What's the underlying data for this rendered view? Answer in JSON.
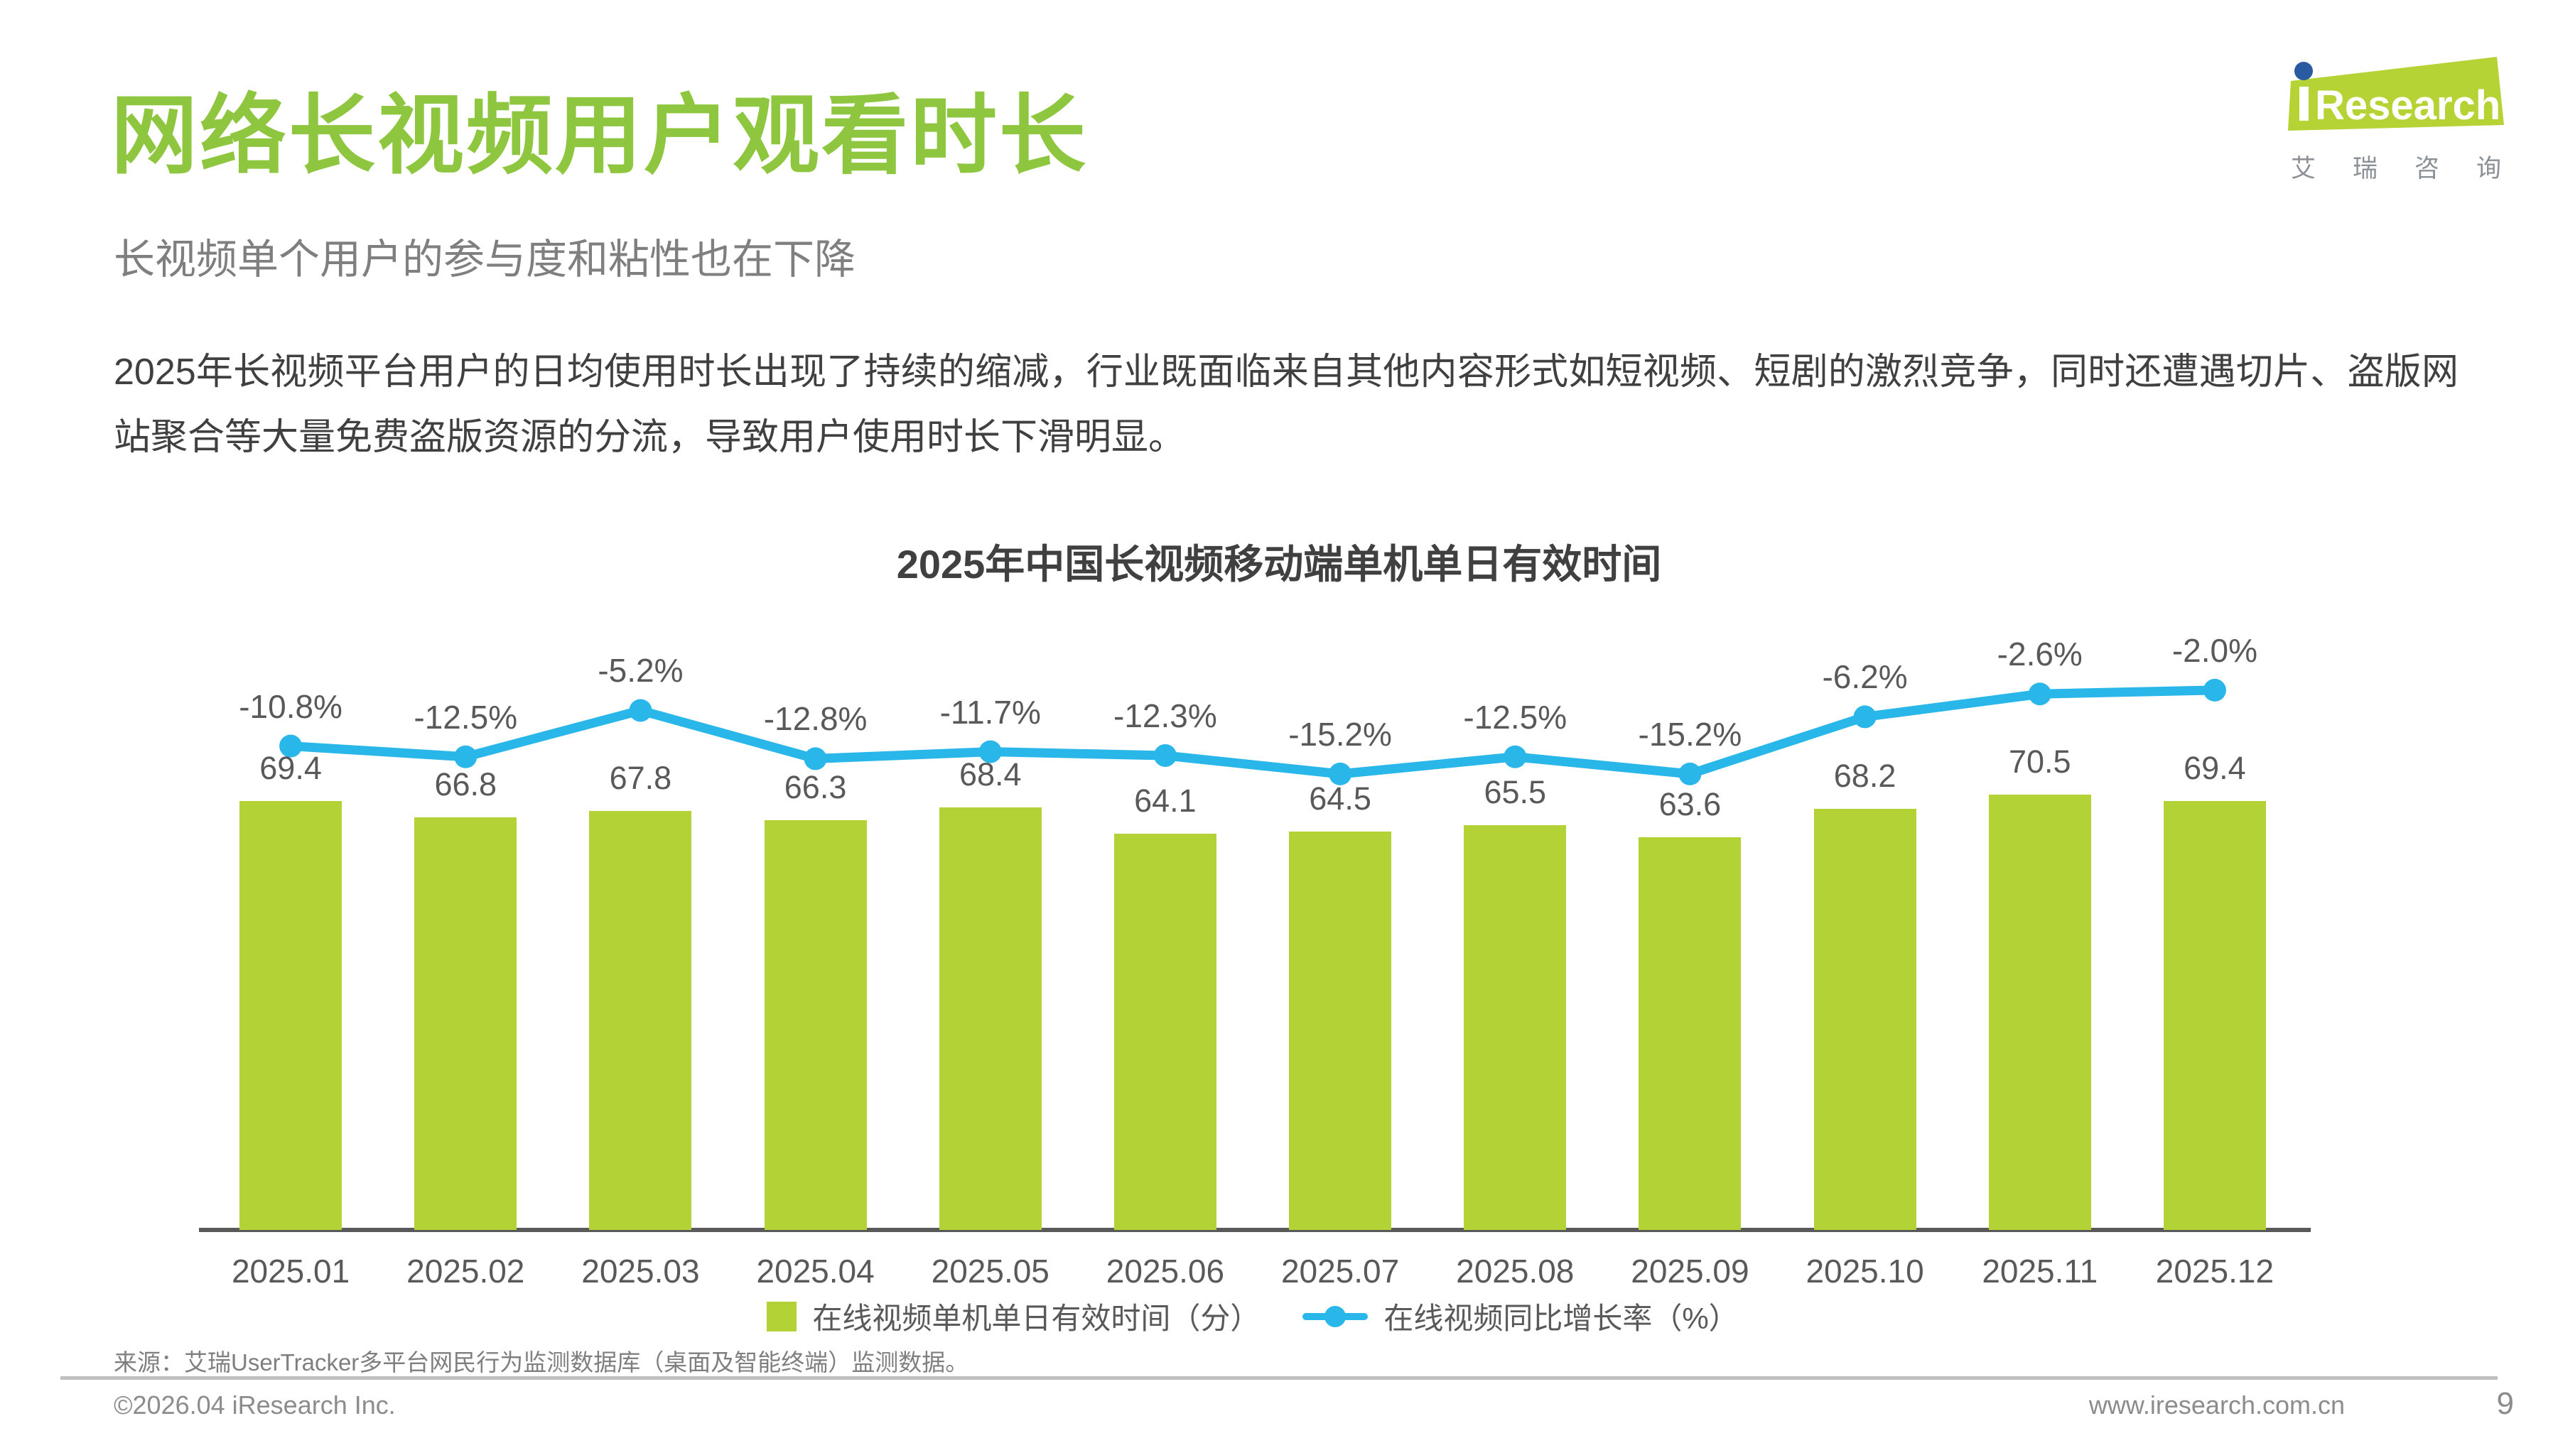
{
  "page": {
    "title": "网络长视频用户观看时长",
    "subtitle": "长视频单个用户的参与度和粘性也在下降",
    "paragraph": "2025年长视频平台用户的日均使用时长出现了持续的缩减，行业既面临来自其他内容形式如短视频、短剧的激烈竞争，同时还遭遇切片、盗版网站聚合等大量免费盗版资源的分流，导致用户使用时长下滑明显。",
    "page_number": "9"
  },
  "logo": {
    "brand": "Research",
    "brand_cn_chars": [
      "艾",
      "瑞",
      "咨",
      "询"
    ]
  },
  "footer": {
    "source": "来源：艾瑞UserTracker多平台网民行为监测数据库（桌面及智能终端）监测数据。",
    "copyright": "©2026.04 iResearch Inc.",
    "website": "www.iresearch.com.cn"
  },
  "chart_data": {
    "type": "bar",
    "title": "2025年中国长视频移动端单机单日有效时间",
    "categories": [
      "2025.01",
      "2025.02",
      "2025.03",
      "2025.04",
      "2025.05",
      "2025.06",
      "2025.07",
      "2025.08",
      "2025.09",
      "2025.10",
      "2025.11",
      "2025.12"
    ],
    "series": [
      {
        "name": "在线视频单机单日有效时间（分）",
        "type": "bar",
        "values": [
          69.4,
          66.8,
          67.8,
          66.3,
          68.4,
          64.1,
          64.5,
          65.5,
          63.6,
          68.2,
          70.5,
          69.4
        ]
      },
      {
        "name": "在线视频同比增长率（%）",
        "type": "line",
        "values": [
          -10.8,
          -12.5,
          -5.2,
          -12.8,
          -11.7,
          -12.3,
          -15.2,
          -12.5,
          -15.2,
          -6.2,
          -2.6,
          -2.0
        ]
      }
    ],
    "value_label_format": {
      "bar": "0.1f",
      "line": "0.1f%"
    },
    "xlabel": "",
    "ylabel": "",
    "legend_position": "bottom",
    "grid": false,
    "colors": {
      "bar": "#b2d235",
      "line": "#29b6e8",
      "label": "#595959",
      "axis": "#595959",
      "title_green": "#8ec63f"
    }
  }
}
